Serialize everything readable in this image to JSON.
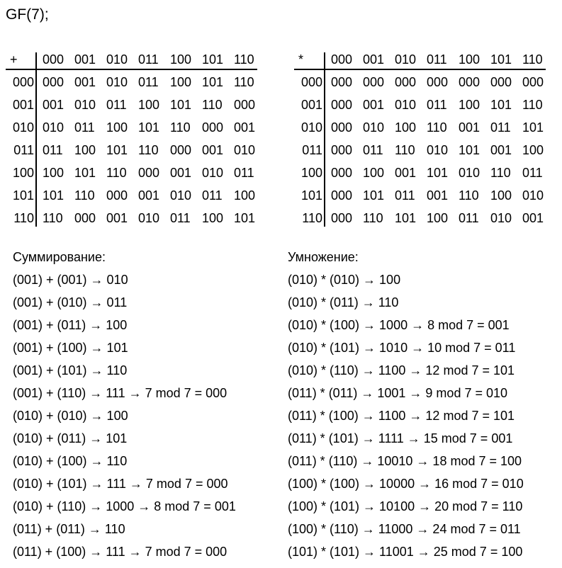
{
  "title": "GF(7);",
  "tables": [
    {
      "corner": "+",
      "columns": [
        "000",
        "001",
        "010",
        "011",
        "100",
        "101",
        "110"
      ],
      "rows": [
        {
          "header": "000",
          "cells": [
            "000",
            "001",
            "010",
            "011",
            "100",
            "101",
            "110"
          ]
        },
        {
          "header": "001",
          "cells": [
            "001",
            "010",
            "011",
            "100",
            "101",
            "110",
            "000"
          ]
        },
        {
          "header": "010",
          "cells": [
            "010",
            "011",
            "100",
            "101",
            "110",
            "000",
            "001"
          ]
        },
        {
          "header": "011",
          "cells": [
            "011",
            "100",
            "101",
            "110",
            "000",
            "001",
            "010"
          ]
        },
        {
          "header": "100",
          "cells": [
            "100",
            "101",
            "110",
            "000",
            "001",
            "010",
            "011"
          ]
        },
        {
          "header": "101",
          "cells": [
            "101",
            "110",
            "000",
            "001",
            "010",
            "011",
            "100"
          ]
        },
        {
          "header": "110",
          "cells": [
            "110",
            "000",
            "001",
            "010",
            "011",
            "100",
            "101"
          ]
        }
      ]
    },
    {
      "corner": "*",
      "columns": [
        "000",
        "001",
        "010",
        "011",
        "100",
        "101",
        "110"
      ],
      "rows": [
        {
          "header": "000",
          "cells": [
            "000",
            "000",
            "000",
            "000",
            "000",
            "000",
            "000"
          ]
        },
        {
          "header": "001",
          "cells": [
            "000",
            "001",
            "010",
            "011",
            "100",
            "101",
            "110"
          ]
        },
        {
          "header": "010",
          "cells": [
            "000",
            "010",
            "100",
            "110",
            "001",
            "011",
            "101"
          ]
        },
        {
          "header": "011",
          "cells": [
            "000",
            "011",
            "110",
            "010",
            "101",
            "001",
            "100"
          ]
        },
        {
          "header": "100",
          "cells": [
            "000",
            "100",
            "001",
            "101",
            "010",
            "110",
            "011"
          ]
        },
        {
          "header": "101",
          "cells": [
            "000",
            "101",
            "011",
            "001",
            "110",
            "100",
            "010"
          ]
        },
        {
          "header": "110",
          "cells": [
            "000",
            "110",
            "101",
            "100",
            "011",
            "010",
            "001"
          ]
        }
      ]
    }
  ],
  "sections": [
    {
      "heading": "Суммирование:",
      "lines": [
        "(001) + (001) → 010",
        "(001) + (010) → 011",
        "(001) + (011) → 100",
        "(001) + (100) → 101",
        "(001) + (101) → 110",
        "(001) + (110) → 111 → 7 mod 7 = 000",
        "(010) + (010) → 100",
        "(010) + (011) → 101",
        "(010) + (100) → 110",
        "(010) + (101) → 111 → 7 mod 7 = 000",
        "(010) + (110) → 1000 → 8 mod 7 = 001",
        "(011) + (011) → 110",
        "(011) + (100) → 111 → 7 mod 7 = 000"
      ]
    },
    {
      "heading": "Умножение:",
      "lines": [
        "(010) * (010) → 100",
        "(010) * (011) → 110",
        "(010) * (100) → 1000 → 8 mod 7 = 001",
        "(010) * (101) → 1010 → 10 mod 7 = 011",
        "(010) * (110) → 1100 → 12 mod 7 = 101",
        "(011) * (011) → 1001 → 9 mod 7 = 010",
        "(011) * (100) → 1100 → 12 mod 7 = 101",
        "(011) * (101) → 1111 → 15 mod 7 = 001",
        "(011) * (110) → 10010 → 18 mod 7 = 100",
        "(100) * (100) → 10000 → 16 mod 7 = 010",
        "(100) * (101) → 10100 → 20 mod 7 = 110",
        "(100) * (110) → 11000 → 24 mod 7 = 011",
        "(101) * (101) → 11001 → 25 mod 7 = 100"
      ]
    }
  ]
}
